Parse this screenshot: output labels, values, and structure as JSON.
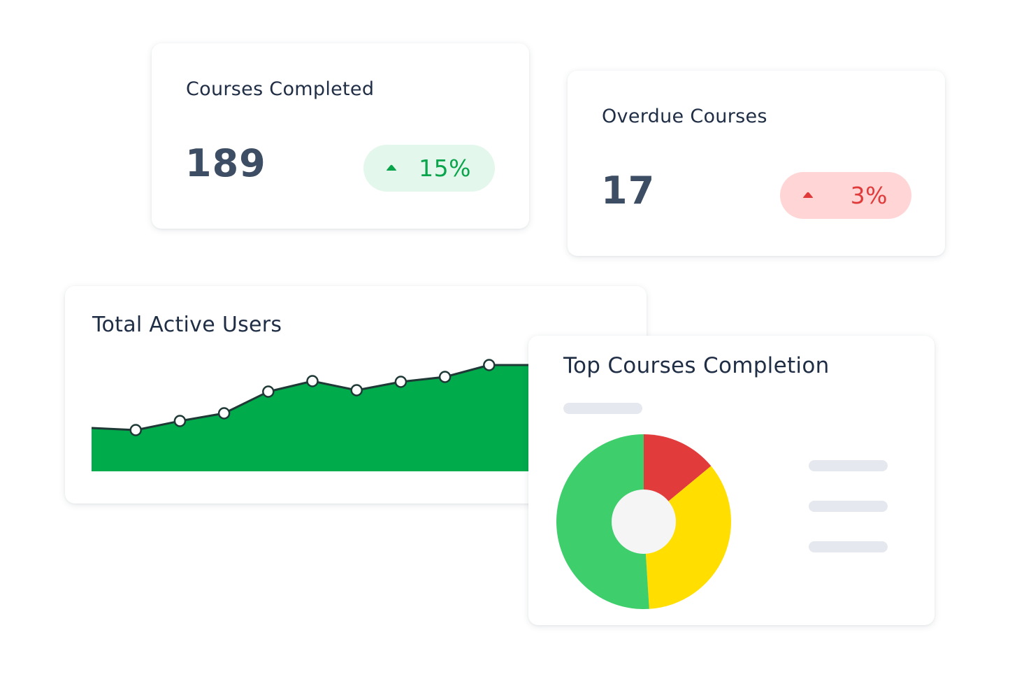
{
  "colors": {
    "text_dark": "#1f2d45",
    "value_text": "#3d4d63",
    "green": "#00ab4c",
    "green_light_bg": "#e4f7ec",
    "red": "#e03a3a",
    "red_light_bg": "#ffd5d5",
    "donut_green": "#3ece6c",
    "donut_red": "#e23b3b",
    "donut_yellow": "#ffde00",
    "donut_center": "#f5f5f6",
    "skeleton": "#e5e8ef"
  },
  "courses_completed": {
    "title": "Courses Completed",
    "value": "189",
    "change": "15%",
    "trend_icon": "triangle-up-icon"
  },
  "overdue_courses": {
    "title": "Overdue Courses",
    "value": "17",
    "change": "3%",
    "trend_icon": "triangle-up-icon"
  },
  "total_active_users": {
    "title": "Total Active Users"
  },
  "top_courses": {
    "title": "Top Courses Completion"
  },
  "chart_data": [
    {
      "type": "area",
      "title": "Total Active Users",
      "x": [
        0,
        1,
        2,
        3,
        4,
        5,
        6,
        7,
        8,
        9,
        10
      ],
      "values": [
        62,
        59,
        72,
        83,
        114,
        129,
        116,
        128,
        135,
        152,
        152
      ],
      "ylim": [
        0,
        200
      ],
      "grid": false,
      "legend": "none",
      "markers_on": [
        1,
        2,
        3,
        4,
        5,
        6,
        7,
        8,
        9
      ]
    },
    {
      "type": "pie",
      "title": "Top Courses Completion",
      "slices": [
        {
          "value": 14,
          "color": "#e23b3b"
        },
        {
          "value": 35,
          "color": "#ffde00"
        },
        {
          "value": 51,
          "color": "#3ece6c"
        }
      ],
      "donut": true,
      "legend": "right"
    }
  ]
}
